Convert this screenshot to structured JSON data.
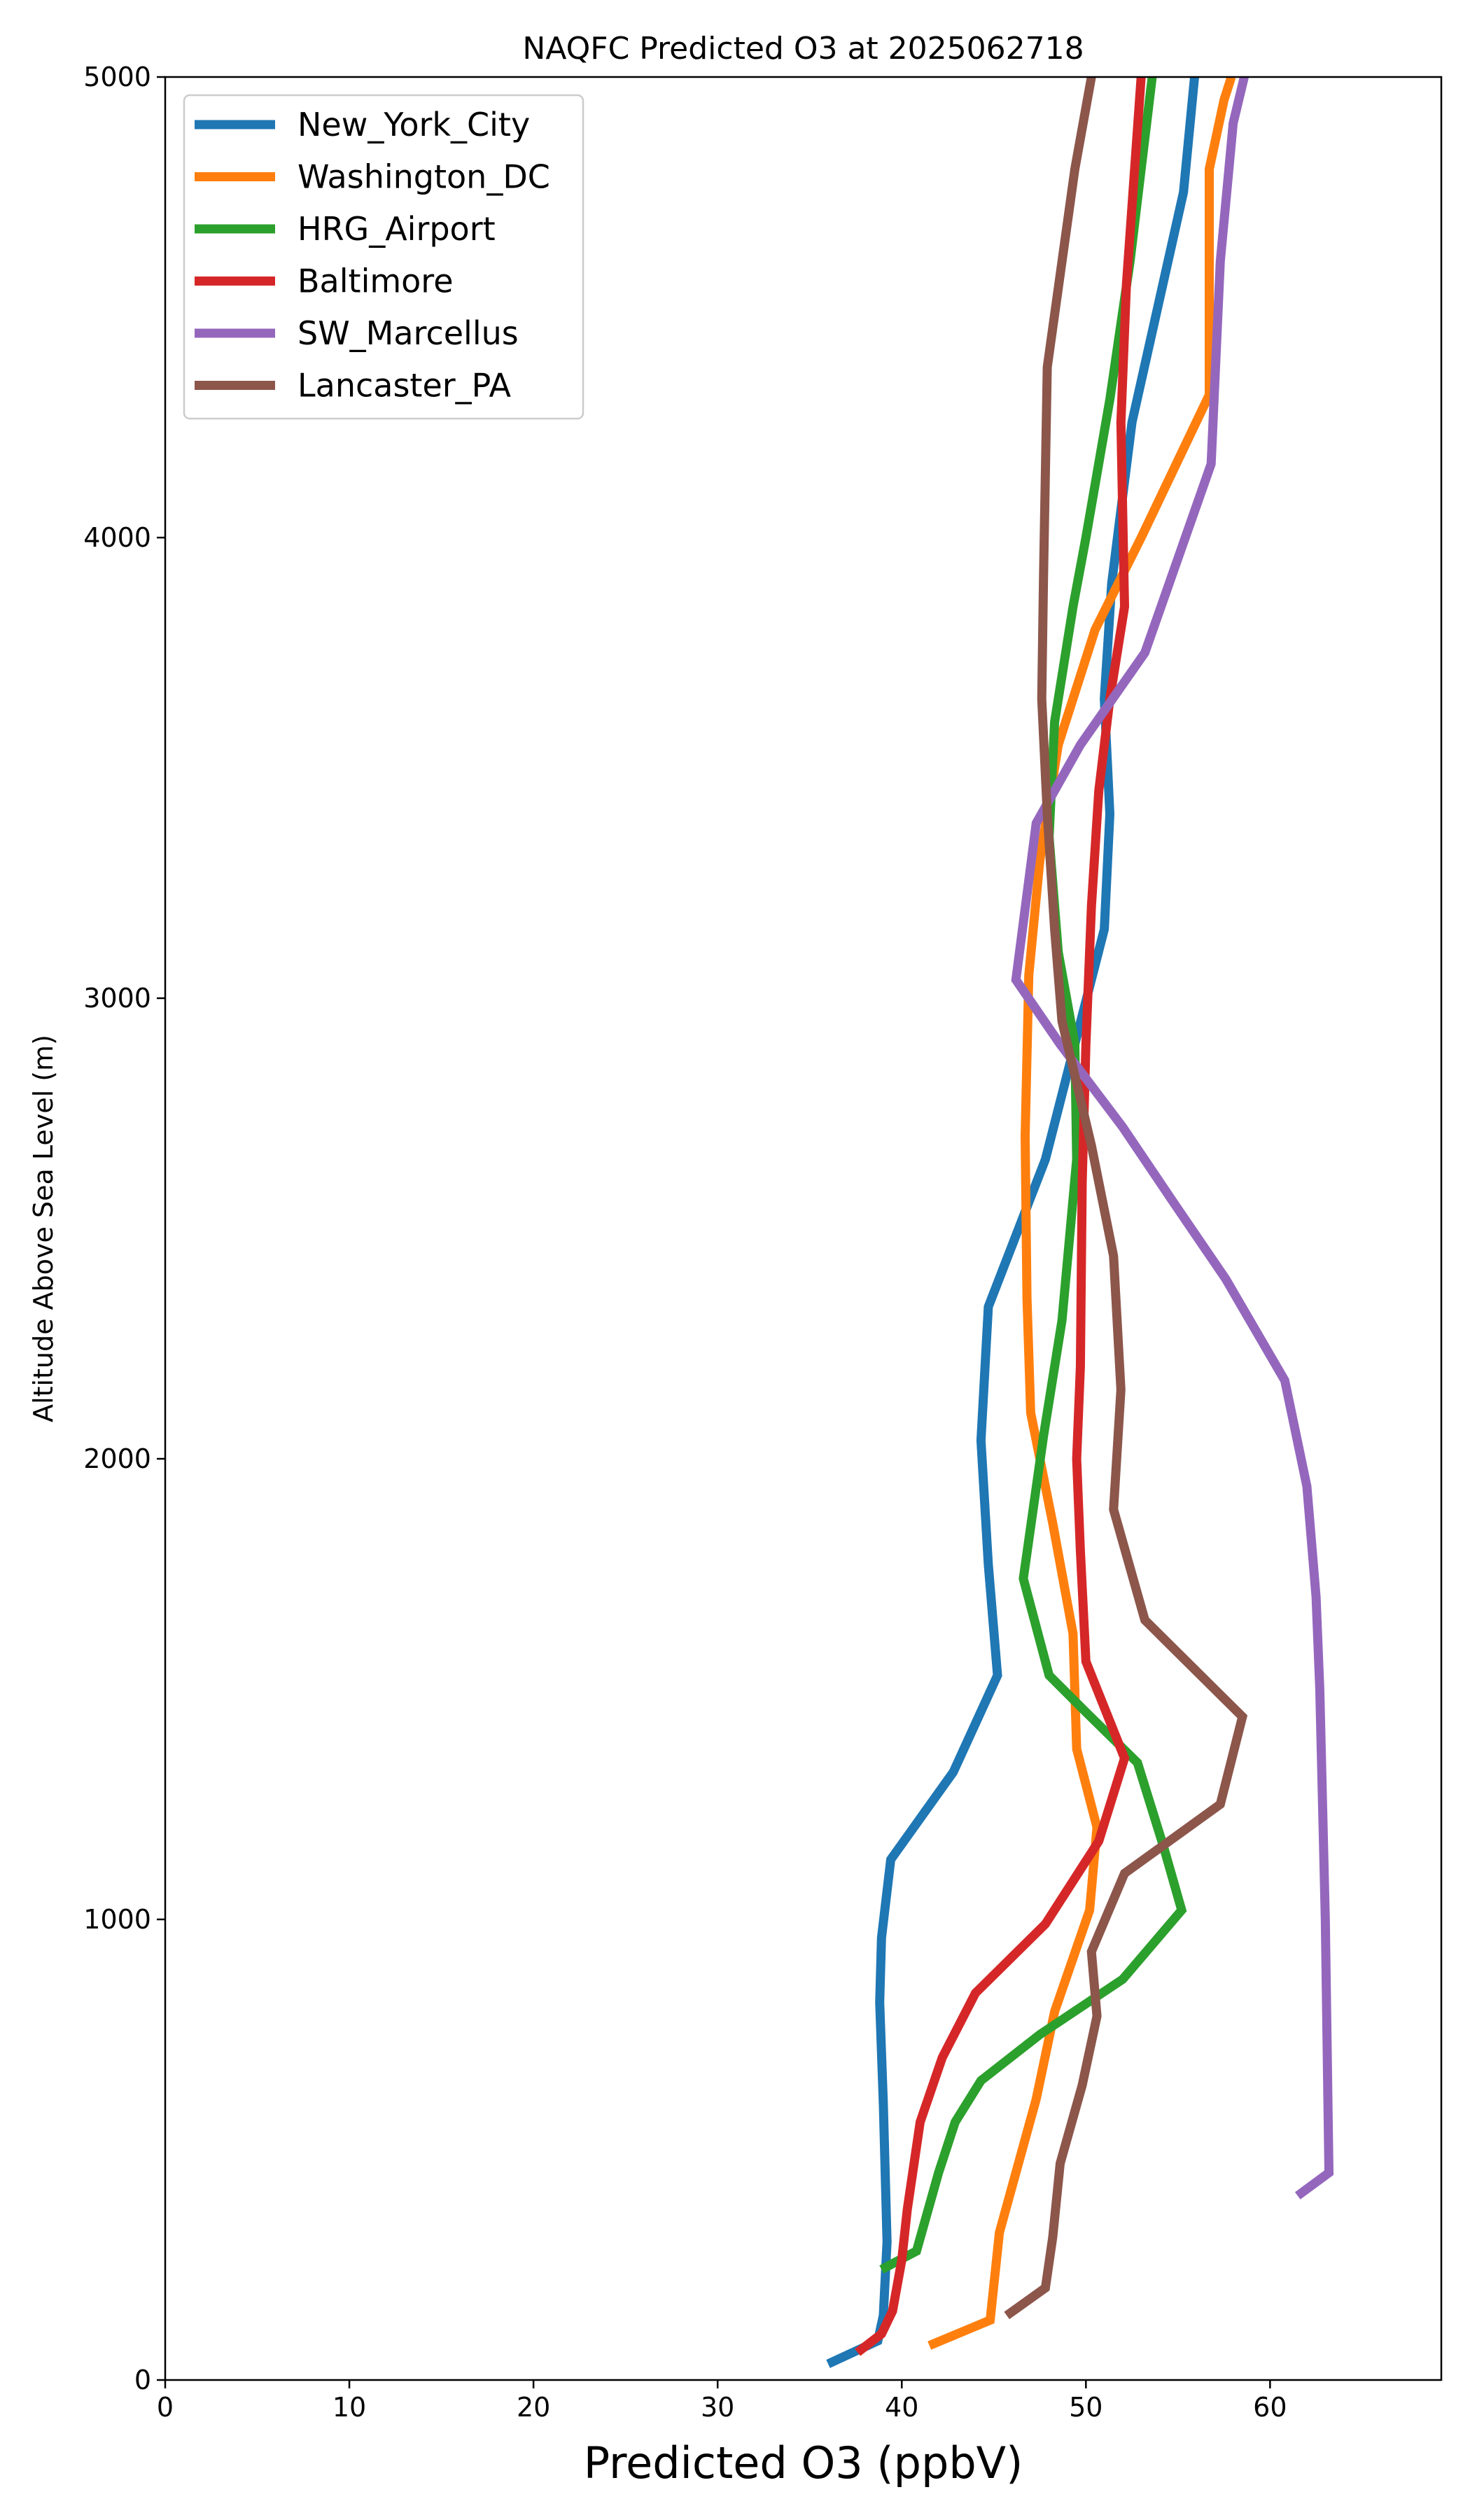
{
  "chart_data": {
    "type": "line",
    "title": "NAQFC Predicted O3 at 2025062718",
    "xlabel": "Predicted O3 (ppbV)",
    "ylabel": "Altitude Above Sea Level (m)",
    "xlim": [
      0,
      69.3
    ],
    "ylim": [
      0,
      5000
    ],
    "xticks": [
      0,
      10,
      20,
      30,
      40,
      50,
      60
    ],
    "yticks": [
      0,
      1000,
      2000,
      3000,
      4000,
      5000
    ],
    "grid": false,
    "legend_position": "upper-left",
    "series": [
      {
        "name": "New_York_City",
        "color": "#1f77b4",
        "points": [
          [
            36.0,
            35
          ],
          [
            38.7,
            85
          ],
          [
            39.0,
            140
          ],
          [
            39.2,
            300
          ],
          [
            39.0,
            600
          ],
          [
            38.8,
            820
          ],
          [
            38.9,
            960
          ],
          [
            39.4,
            1130
          ],
          [
            42.8,
            1320
          ],
          [
            45.2,
            1530
          ],
          [
            44.7,
            1770
          ],
          [
            44.3,
            2040
          ],
          [
            44.7,
            2330
          ],
          [
            47.8,
            2650
          ],
          [
            49.4,
            2900
          ],
          [
            51.0,
            3150
          ],
          [
            51.3,
            3400
          ],
          [
            51.0,
            3650
          ],
          [
            51.4,
            3900
          ],
          [
            52.5,
            4250
          ],
          [
            55.3,
            4750
          ],
          [
            55.9,
            5000
          ]
        ]
      },
      {
        "name": "Washington_DC",
        "color": "#ff7f0e",
        "points": [
          [
            41.5,
            75
          ],
          [
            44.8,
            130
          ],
          [
            45.3,
            320
          ],
          [
            47.3,
            610
          ],
          [
            48.3,
            800
          ],
          [
            50.2,
            1020
          ],
          [
            50.6,
            1200
          ],
          [
            49.5,
            1370
          ],
          [
            49.3,
            1620
          ],
          [
            48.2,
            1860
          ],
          [
            47.0,
            2100
          ],
          [
            46.8,
            2350
          ],
          [
            46.7,
            2700
          ],
          [
            46.9,
            3050
          ],
          [
            47.5,
            3300
          ],
          [
            48.5,
            3550
          ],
          [
            50.5,
            3800
          ],
          [
            53.0,
            4000
          ],
          [
            56.7,
            4310
          ],
          [
            56.7,
            4800
          ],
          [
            57.5,
            4950
          ],
          [
            57.9,
            5000
          ]
        ]
      },
      {
        "name": "HRG_Airport",
        "color": "#2ca02c",
        "points": [
          [
            38.9,
            240
          ],
          [
            40.8,
            280
          ],
          [
            42.0,
            450
          ],
          [
            42.9,
            560
          ],
          [
            44.3,
            650
          ],
          [
            47.5,
            750
          ],
          [
            52.0,
            870
          ],
          [
            55.2,
            1020
          ],
          [
            54.2,
            1160
          ],
          [
            52.8,
            1340
          ],
          [
            50.0,
            1450
          ],
          [
            48.0,
            1530
          ],
          [
            46.6,
            1740
          ],
          [
            47.7,
            2050
          ],
          [
            48.7,
            2300
          ],
          [
            49.5,
            2650
          ],
          [
            49.4,
            2900
          ],
          [
            48.5,
            3100
          ],
          [
            48.0,
            3350
          ],
          [
            48.3,
            3600
          ],
          [
            49.3,
            3850
          ],
          [
            50.0,
            4000
          ],
          [
            51.3,
            4300
          ],
          [
            52.4,
            4600
          ],
          [
            53.3,
            4900
          ],
          [
            53.6,
            5000
          ]
        ]
      },
      {
        "name": "Baltimore",
        "color": "#d62728",
        "points": [
          [
            37.6,
            60
          ],
          [
            38.9,
            100
          ],
          [
            39.5,
            150
          ],
          [
            40.0,
            260
          ],
          [
            40.3,
            370
          ],
          [
            41.0,
            560
          ],
          [
            42.2,
            700
          ],
          [
            44.0,
            840
          ],
          [
            47.8,
            990
          ],
          [
            50.7,
            1170
          ],
          [
            52.1,
            1350
          ],
          [
            50.0,
            1560
          ],
          [
            49.7,
            1800
          ],
          [
            49.5,
            2000
          ],
          [
            49.7,
            2200
          ],
          [
            49.8,
            2600
          ],
          [
            50.0,
            2900
          ],
          [
            50.3,
            3200
          ],
          [
            50.7,
            3450
          ],
          [
            51.3,
            3650
          ],
          [
            52.1,
            3850
          ],
          [
            51.9,
            4250
          ],
          [
            52.2,
            4550
          ],
          [
            53.0,
            5000
          ]
        ]
      },
      {
        "name": "SW_Marcellus",
        "color": "#9467bd",
        "points": [
          [
            61.5,
            400
          ],
          [
            63.2,
            450
          ],
          [
            63.0,
            1000
          ],
          [
            62.7,
            1500
          ],
          [
            62.5,
            1700
          ],
          [
            62.0,
            1940
          ],
          [
            60.8,
            2170
          ],
          [
            57.6,
            2390
          ],
          [
            54.7,
            2560
          ],
          [
            52.0,
            2720
          ],
          [
            48.6,
            2900
          ],
          [
            46.2,
            3040
          ],
          [
            47.3,
            3380
          ],
          [
            49.7,
            3550
          ],
          [
            53.2,
            3750
          ],
          [
            56.8,
            4160
          ],
          [
            57.3,
            4600
          ],
          [
            58.0,
            4900
          ],
          [
            58.6,
            5000
          ]
        ]
      },
      {
        "name": "Lancaster_PA",
        "color": "#8c564b",
        "points": [
          [
            45.7,
            140
          ],
          [
            47.8,
            200
          ],
          [
            48.2,
            310
          ],
          [
            48.6,
            470
          ],
          [
            49.8,
            640
          ],
          [
            50.6,
            790
          ],
          [
            50.3,
            930
          ],
          [
            52.1,
            1100
          ],
          [
            57.3,
            1250
          ],
          [
            58.5,
            1440
          ],
          [
            53.2,
            1650
          ],
          [
            51.5,
            1890
          ],
          [
            51.9,
            2150
          ],
          [
            51.5,
            2440
          ],
          [
            50.3,
            2680
          ],
          [
            48.7,
            2950
          ],
          [
            48.3,
            3150
          ],
          [
            47.9,
            3400
          ],
          [
            47.6,
            3650
          ],
          [
            47.7,
            3920
          ],
          [
            47.8,
            4140
          ],
          [
            47.9,
            4370
          ],
          [
            49.4,
            4800
          ],
          [
            50.3,
            5000
          ]
        ]
      }
    ]
  }
}
